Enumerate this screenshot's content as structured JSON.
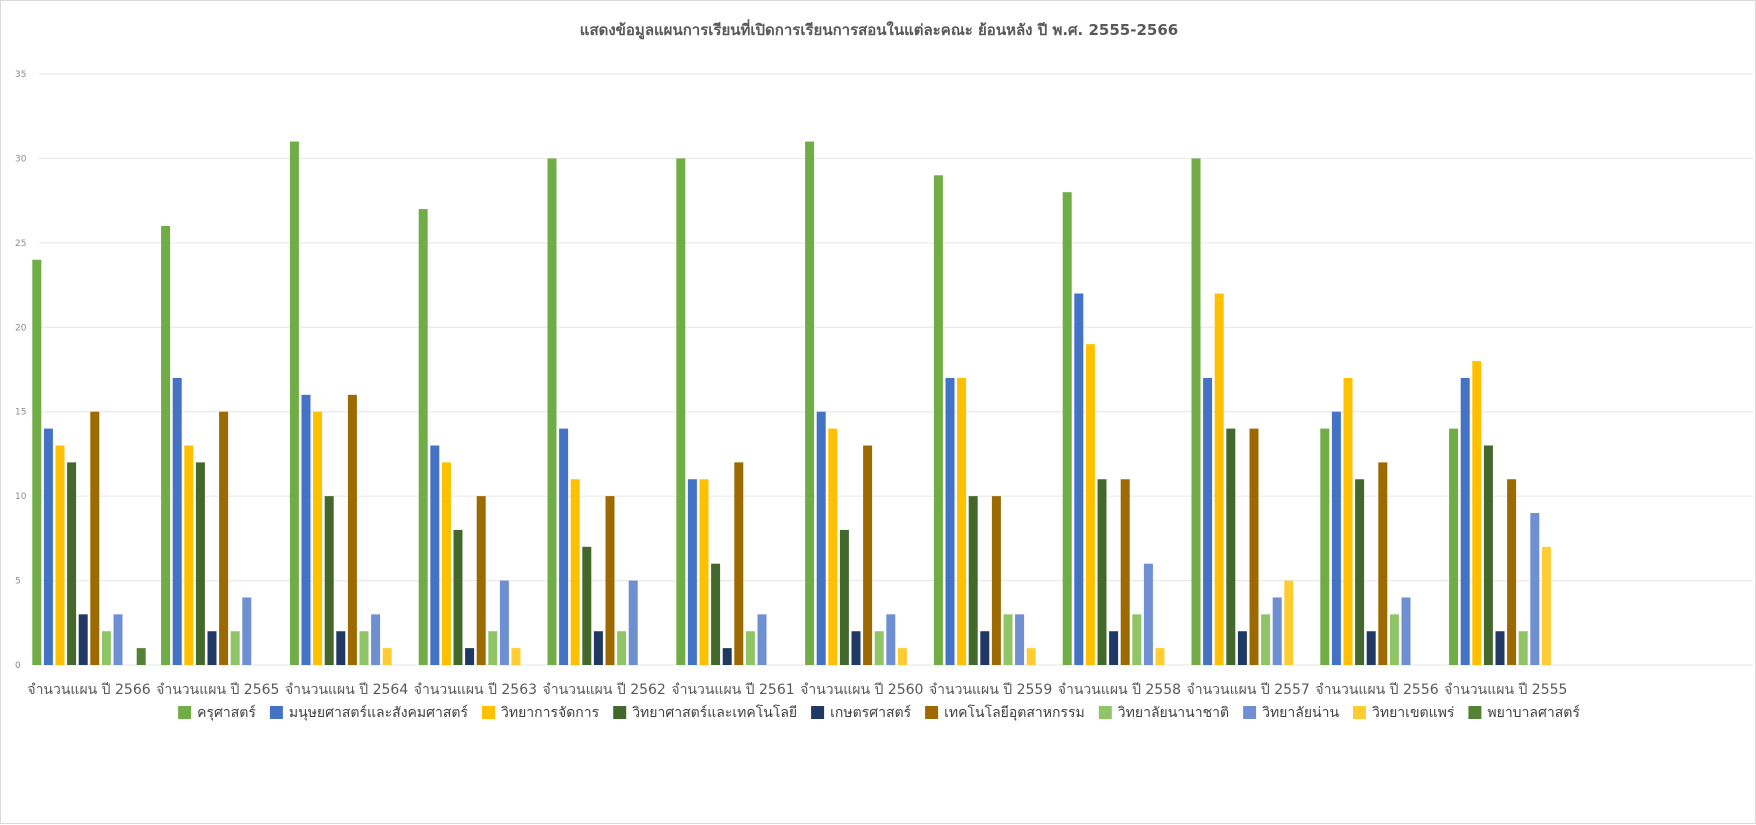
{
  "chart_data": {
    "type": "bar",
    "title": "แสดงข้อมูลแผนการเรียนที่เปิดการเรียนการสอนในแต่ละคณะ ย้อนหลัง ปี พ.ศ. 2555-2566",
    "xlabel": "",
    "ylabel": "",
    "ylim": [
      0,
      35
    ],
    "yticks": [
      0,
      5,
      10,
      15,
      20,
      25,
      30,
      35
    ],
    "grid": true,
    "legend_position": "bottom",
    "categories": [
      "จำนวนแผน ปี 2566",
      "จำนวนแผน ปี 2565",
      "จำนวนแผน ปี 2564",
      "จำนวนแผน ปี 2563",
      "จำนวนแผน ปี 2562",
      "จำนวนแผน ปี 2561",
      "จำนวนแผน ปี 2560",
      "จำนวนแผน ปี 2559",
      "จำนวนแผน ปี 2558",
      "จำนวนแผน ปี 2557",
      "จำนวนแผน ปี 2556",
      "จำนวนแผน ปี 2555"
    ],
    "series": [
      {
        "name": "ครุศาสตร์",
        "color": "#70AD47",
        "values": [
          24,
          26,
          31,
          27,
          30,
          30,
          31,
          29,
          28,
          30,
          14,
          14
        ]
      },
      {
        "name": "มนุษยศาสตร์และสังคมศาสตร์",
        "color": "#4472C4",
        "values": [
          14,
          17,
          16,
          13,
          14,
          11,
          15,
          17,
          22,
          17,
          15,
          17
        ]
      },
      {
        "name": "วิทยาการจัดการ",
        "color": "#FFC000",
        "values": [
          13,
          13,
          15,
          12,
          11,
          11,
          14,
          17,
          19,
          22,
          17,
          18
        ]
      },
      {
        "name": "วิทยาศาสตร์และเทคโนโลยี",
        "color": "#43682B",
        "values": [
          12,
          12,
          10,
          8,
          7,
          6,
          8,
          10,
          11,
          14,
          11,
          13
        ]
      },
      {
        "name": "เกษตรศาสตร์",
        "color": "#203864",
        "values": [
          3,
          2,
          2,
          1,
          2,
          1,
          2,
          2,
          2,
          2,
          2,
          2
        ]
      },
      {
        "name": "เทคโนโลยีอุตสาหกรรม",
        "color": "#9C6A00",
        "values": [
          15,
          15,
          16,
          10,
          10,
          12,
          13,
          10,
          11,
          14,
          12,
          11
        ]
      },
      {
        "name": "วิทยาลัยนานาชาติ",
        "color": "#8FC567",
        "values": [
          2,
          2,
          2,
          2,
          2,
          2,
          2,
          3,
          3,
          3,
          3,
          2
        ]
      },
      {
        "name": "วิทยาลัยน่าน",
        "color": "#6F8FD3",
        "values": [
          3,
          4,
          3,
          5,
          5,
          3,
          3,
          3,
          6,
          4,
          4,
          9
        ]
      },
      {
        "name": "วิทยาเขตแพร่",
        "color": "#FFCC33",
        "values": [
          0,
          0,
          1,
          1,
          0,
          0,
          1,
          1,
          1,
          5,
          0,
          7
        ]
      },
      {
        "name": "พยาบาลศาสตร์",
        "color": "#548235",
        "values": [
          1,
          0,
          0,
          0,
          0,
          0,
          0,
          0,
          0,
          0,
          0,
          0
        ]
      }
    ]
  }
}
